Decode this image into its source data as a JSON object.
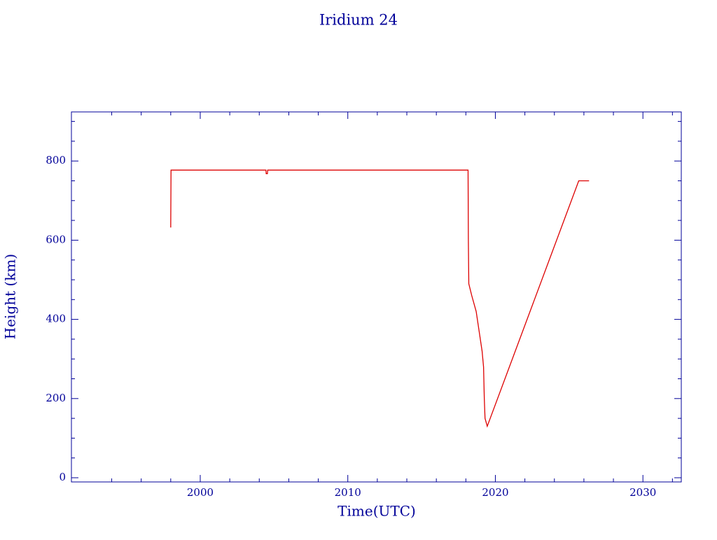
{
  "chart_data": {
    "type": "line",
    "title": "Iridium 24",
    "xlabel": "Time(UTC)",
    "ylabel": "Height (km)",
    "xlim": [
      1991.27,
      2032.6
    ],
    "ylim": [
      -10.6,
      924
    ],
    "xticks": [
      2000,
      2010,
      2020,
      2030
    ],
    "yticks": [
      0,
      200,
      400,
      600,
      800
    ],
    "xminorticks": [
      1994,
      1996,
      1998,
      2002,
      2004,
      2006,
      2008,
      2012,
      2014,
      2016,
      2018,
      2022,
      2024,
      2026,
      2028,
      2032
    ],
    "yminorticks": [
      50,
      100,
      150,
      250,
      300,
      350,
      450,
      500,
      550,
      650,
      700,
      750,
      850,
      900
    ],
    "axis_color": "#000099",
    "series": [
      {
        "color": "#dd0000",
        "x": [
          1998.0,
          1998.02,
          2004.45,
          2004.47,
          2004.55,
          2004.57,
          2018.15,
          2018.17,
          2018.2,
          2018.4,
          2018.7,
          2018.9,
          2019.1,
          2019.2,
          2019.25,
          2019.3,
          2019.45,
          2025.65,
          2026.35
        ],
        "values": [
          632,
          777,
          777,
          768,
          768,
          777,
          777,
          600,
          490,
          460,
          420,
          370,
          320,
          280,
          200,
          150,
          130,
          750,
          750
        ]
      }
    ]
  }
}
